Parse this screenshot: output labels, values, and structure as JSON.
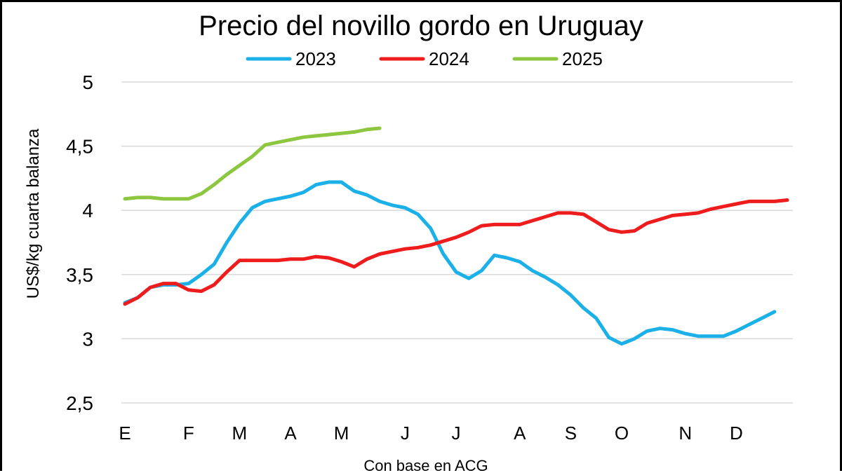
{
  "chart_data": {
    "type": "line",
    "title": "Precio del novillo gordo en Uruguay",
    "ylabel": "US$/kg cuarta balanza",
    "xlabel": "Con base en ACG",
    "ylim": [
      2.5,
      5
    ],
    "yticks": [
      {
        "value": 5,
        "label": "5"
      },
      {
        "value": 4.5,
        "label": "4,5"
      },
      {
        "value": 4,
        "label": "4"
      },
      {
        "value": 3.5,
        "label": "3,5"
      },
      {
        "value": 3,
        "label": "3"
      },
      {
        "value": 2.5,
        "label": "2,5"
      }
    ],
    "xlim": [
      0,
      52
    ],
    "xticks": [
      {
        "week": 0,
        "label": "E"
      },
      {
        "week": 5,
        "label": "F"
      },
      {
        "week": 9,
        "label": "M"
      },
      {
        "week": 13,
        "label": "A"
      },
      {
        "week": 17,
        "label": "M"
      },
      {
        "week": 22,
        "label": "J"
      },
      {
        "week": 26,
        "label": "J"
      },
      {
        "week": 31,
        "label": "A"
      },
      {
        "week": 35,
        "label": "S"
      },
      {
        "week": 39,
        "label": "O"
      },
      {
        "week": 44,
        "label": "N"
      },
      {
        "week": 48,
        "label": "D"
      }
    ],
    "legend_position": "top",
    "series": [
      {
        "name": "2023",
        "color": "#1BB0E8",
        "x": [
          0,
          1,
          2,
          3,
          4,
          5,
          6,
          7,
          8,
          9,
          10,
          11,
          12,
          13,
          14,
          15,
          16,
          17,
          18,
          19,
          20,
          21,
          22,
          23,
          24,
          25,
          26,
          27,
          28,
          29,
          30,
          31,
          32,
          33,
          34,
          35,
          36,
          37,
          38,
          39,
          40,
          41,
          42,
          43,
          44,
          45,
          46,
          47,
          48,
          49,
          50,
          51
        ],
        "values": [
          3.28,
          3.32,
          3.4,
          3.42,
          3.42,
          3.43,
          3.5,
          3.58,
          3.75,
          3.9,
          4.02,
          4.07,
          4.09,
          4.11,
          4.14,
          4.2,
          4.22,
          4.22,
          4.15,
          4.12,
          4.07,
          4.04,
          4.02,
          3.97,
          3.86,
          3.66,
          3.52,
          3.47,
          3.53,
          3.65,
          3.63,
          3.6,
          3.53,
          3.48,
          3.42,
          3.34,
          3.24,
          3.16,
          3.01,
          2.96,
          3.0,
          3.06,
          3.08,
          3.07,
          3.04,
          3.02,
          3.02,
          3.02,
          3.06,
          3.11,
          3.16,
          3.21
        ]
      },
      {
        "name": "2024",
        "color": "#EE1C1C",
        "x": [
          0,
          1,
          2,
          3,
          4,
          5,
          6,
          7,
          8,
          9,
          10,
          11,
          12,
          13,
          14,
          15,
          16,
          17,
          18,
          19,
          20,
          21,
          22,
          23,
          24,
          25,
          26,
          27,
          28,
          29,
          30,
          31,
          32,
          33,
          34,
          35,
          36,
          37,
          38,
          39,
          40,
          41,
          42,
          43,
          44,
          45,
          46,
          47,
          48,
          49,
          50,
          51,
          52
        ],
        "values": [
          3.27,
          3.32,
          3.4,
          3.43,
          3.43,
          3.38,
          3.37,
          3.42,
          3.52,
          3.61,
          3.61,
          3.61,
          3.61,
          3.62,
          3.62,
          3.64,
          3.63,
          3.6,
          3.56,
          3.62,
          3.66,
          3.68,
          3.7,
          3.71,
          3.73,
          3.76,
          3.79,
          3.83,
          3.88,
          3.89,
          3.89,
          3.89,
          3.92,
          3.95,
          3.98,
          3.98,
          3.97,
          3.91,
          3.85,
          3.83,
          3.84,
          3.9,
          3.93,
          3.96,
          3.97,
          3.98,
          4.01,
          4.03,
          4.05,
          4.07,
          4.07,
          4.07,
          4.08
        ]
      },
      {
        "name": "2025",
        "color": "#8DC63F",
        "x": [
          0,
          1,
          2,
          3,
          4,
          5,
          6,
          7,
          8,
          9,
          10,
          11,
          12,
          13,
          14,
          15,
          16,
          17,
          18,
          19,
          20
        ],
        "values": [
          4.09,
          4.1,
          4.1,
          4.09,
          4.09,
          4.09,
          4.13,
          4.2,
          4.28,
          4.35,
          4.42,
          4.51,
          4.53,
          4.55,
          4.57,
          4.58,
          4.59,
          4.6,
          4.61,
          4.63,
          4.64
        ]
      }
    ]
  }
}
